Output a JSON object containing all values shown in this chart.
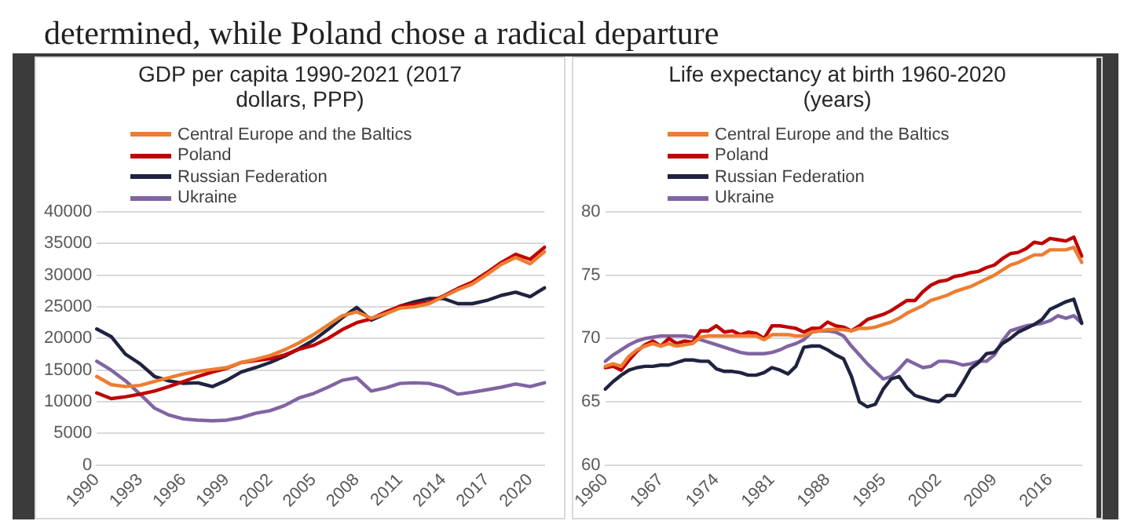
{
  "chart_data": [
    {
      "type": "line",
      "title": "GDP per capita 1990-2021 (2017 dollars, PPP)",
      "annotations": [
        "determined, while Poland chose a radical departure"
      ],
      "categories": [
        "1990",
        null,
        null,
        "1993",
        null,
        null,
        "1996",
        null,
        null,
        "1999",
        null,
        null,
        "2002",
        null,
        null,
        "2005",
        null,
        null,
        "2008",
        null,
        null,
        "2011",
        null,
        null,
        "2014",
        null,
        null,
        "2017",
        null,
        null,
        "2020",
        null
      ],
      "series": [
        {
          "name": "Central Europe and the Baltics",
          "color": "#ed7d31",
          "values": [
            14000,
            12700,
            12400,
            12600,
            13200,
            13800,
            14400,
            14800,
            15100,
            15400,
            16200,
            16700,
            17300,
            18200,
            19300,
            20600,
            22100,
            23600,
            24200,
            23200,
            23900,
            24800,
            25000,
            25500,
            26600,
            27700,
            28600,
            30100,
            31700,
            32800,
            31800,
            33700
          ]
        },
        {
          "name": "Poland",
          "color": "#c00000",
          "values": [
            11400,
            10500,
            10800,
            11200,
            11700,
            12400,
            13200,
            14000,
            14700,
            15300,
            16200,
            16500,
            16800,
            17400,
            18300,
            18900,
            20000,
            21400,
            22500,
            23100,
            24200,
            25100,
            25400,
            25700,
            26700,
            27900,
            28900,
            30400,
            32000,
            33300,
            32500,
            34400
          ]
        },
        {
          "name": "Russian Federation",
          "color": "#1f2340",
          "values": [
            21500,
            20300,
            17500,
            16000,
            14000,
            13300,
            12900,
            13000,
            12400,
            13400,
            14700,
            15400,
            16200,
            17200,
            18400,
            19700,
            21400,
            23300,
            24900,
            22900,
            23900,
            25100,
            25800,
            26300,
            26300,
            25500,
            25500,
            26000,
            26800,
            27300,
            26600,
            28000
          ]
        },
        {
          "name": "Ukraine",
          "color": "#8064a2",
          "values": [
            16400,
            15000,
            13300,
            11200,
            9000,
            7900,
            7300,
            7100,
            7000,
            7100,
            7500,
            8200,
            8600,
            9400,
            10600,
            11300,
            12300,
            13400,
            13800,
            11700,
            12200,
            12900,
            13000,
            12900,
            12300,
            11200,
            11500,
            11900,
            12300,
            12800,
            12400,
            13000
          ]
        }
      ],
      "ylim": [
        0,
        40000
      ],
      "yticks": [
        0,
        5000,
        10000,
        15000,
        20000,
        25000,
        30000,
        35000,
        40000
      ],
      "grid": "y",
      "legend": "top left"
    },
    {
      "type": "line",
      "title": "Life expectancy at birth 1960-2020 (years)",
      "categories": [
        "1960",
        null,
        null,
        null,
        null,
        null,
        null,
        "1967",
        null,
        null,
        null,
        null,
        null,
        null,
        "1974",
        null,
        null,
        null,
        null,
        null,
        null,
        "1981",
        null,
        null,
        null,
        null,
        null,
        null,
        "1988",
        null,
        null,
        null,
        null,
        null,
        null,
        "1995",
        null,
        null,
        null,
        null,
        null,
        null,
        "2002",
        null,
        null,
        null,
        null,
        null,
        null,
        "2009",
        null,
        null,
        null,
        null,
        null,
        null,
        "2016",
        null,
        null,
        null,
        null
      ],
      "series": [
        {
          "name": "Central Europe and the Baltics",
          "color": "#ed7d31",
          "values": [
            67.8,
            68.0,
            67.8,
            68.6,
            69.1,
            69.4,
            69.6,
            69.4,
            69.6,
            69.4,
            69.5,
            69.6,
            70.1,
            70.2,
            70.2,
            70.2,
            70.2,
            70.2,
            70.2,
            70.2,
            69.9,
            70.3,
            70.3,
            70.3,
            70.2,
            70.2,
            70.5,
            70.6,
            70.7,
            70.7,
            70.7,
            70.6,
            70.8,
            70.8,
            70.9,
            71.1,
            71.3,
            71.6,
            72.0,
            72.3,
            72.6,
            73.0,
            73.2,
            73.4,
            73.7,
            73.9,
            74.1,
            74.4,
            74.7,
            75.0,
            75.4,
            75.8,
            76.0,
            76.3,
            76.6,
            76.6,
            77.0,
            77.0,
            77.0,
            77.2,
            76.0
          ]
        },
        {
          "name": "Poland",
          "color": "#c00000",
          "values": [
            67.7,
            67.8,
            67.5,
            68.3,
            69.0,
            69.5,
            69.8,
            69.4,
            70.0,
            69.6,
            69.8,
            69.7,
            70.6,
            70.6,
            71.0,
            70.5,
            70.6,
            70.3,
            70.5,
            70.4,
            70.0,
            71.0,
            71.0,
            70.9,
            70.8,
            70.5,
            70.8,
            70.8,
            71.3,
            71.0,
            70.9,
            70.6,
            71.0,
            71.5,
            71.7,
            71.9,
            72.2,
            72.6,
            73.0,
            73.0,
            73.7,
            74.2,
            74.5,
            74.6,
            74.9,
            75.0,
            75.2,
            75.3,
            75.6,
            75.8,
            76.3,
            76.7,
            76.8,
            77.1,
            77.6,
            77.5,
            77.9,
            77.8,
            77.7,
            78.0,
            76.5
          ]
        },
        {
          "name": "Russian Federation",
          "color": "#1f2340",
          "values": [
            66.0,
            66.6,
            67.1,
            67.5,
            67.7,
            67.8,
            67.8,
            67.9,
            67.9,
            68.1,
            68.3,
            68.3,
            68.2,
            68.2,
            67.6,
            67.4,
            67.4,
            67.3,
            67.1,
            67.1,
            67.3,
            67.7,
            67.5,
            67.2,
            67.8,
            69.3,
            69.4,
            69.4,
            69.1,
            68.7,
            68.4,
            67.0,
            65.0,
            64.6,
            64.8,
            66.0,
            66.8,
            67.0,
            66.1,
            65.5,
            65.3,
            65.1,
            65.0,
            65.5,
            65.5,
            66.5,
            67.6,
            68.1,
            68.8,
            68.9,
            69.6,
            70.0,
            70.5,
            70.8,
            71.1,
            71.5,
            72.3,
            72.6,
            72.9,
            73.1,
            71.2
          ]
        },
        {
          "name": "Ukraine",
          "color": "#8064a2",
          "values": [
            68.2,
            68.7,
            69.1,
            69.5,
            69.8,
            70.0,
            70.1,
            70.2,
            70.2,
            70.2,
            70.2,
            70.1,
            69.9,
            69.7,
            69.5,
            69.3,
            69.1,
            68.9,
            68.8,
            68.8,
            68.8,
            68.9,
            69.1,
            69.4,
            69.6,
            69.9,
            70.5,
            70.6,
            70.6,
            70.5,
            70.2,
            69.4,
            68.7,
            68.0,
            67.4,
            66.8,
            67.0,
            67.6,
            68.3,
            68.0,
            67.7,
            67.8,
            68.2,
            68.2,
            68.1,
            67.9,
            68.0,
            68.2,
            68.2,
            68.7,
            69.8,
            70.6,
            70.8,
            71.0,
            71.1,
            71.2,
            71.4,
            71.8,
            71.6,
            71.8,
            71.2
          ]
        }
      ],
      "ylim": [
        60,
        80
      ],
      "yticks": [
        60,
        65,
        70,
        75,
        80
      ],
      "grid": "y",
      "legend": "top left"
    }
  ]
}
